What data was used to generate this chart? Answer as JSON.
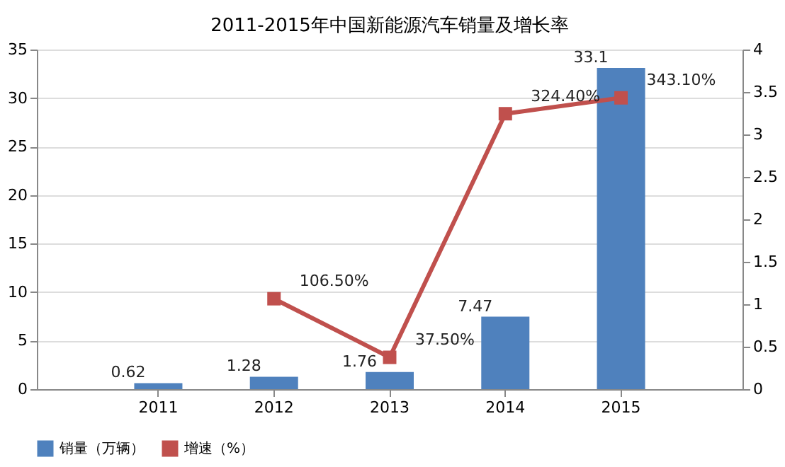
{
  "chart_data": {
    "type": "bar",
    "title": "2011-2015年中国新能源汽车销量及增长率",
    "categories": [
      "2011",
      "2012",
      "2013",
      "2014",
      "2015"
    ],
    "series": [
      {
        "name": "销量（万辆）",
        "color": "#4f81bd",
        "values": [
          0.62,
          1.28,
          1.76,
          7.47,
          33.1
        ],
        "data_labels": true
      },
      {
        "name": "增速（%）",
        "type": "line",
        "axis": "y2",
        "color": "#c0504d",
        "values": [
          null,
          1.065,
          0.375,
          3.244,
          3.431
        ],
        "value_labels": [
          null,
          "106.50%",
          "37.50%",
          "324.40%",
          "343.10%"
        ],
        "marker": "square"
      }
    ],
    "ylim": [
      0,
      35
    ],
    "yticks": [
      0,
      5,
      10,
      15,
      20,
      25,
      30,
      35
    ],
    "y2lim": [
      0,
      4
    ],
    "y2ticks": [
      0,
      0.5,
      1,
      1.5,
      2,
      2.5,
      3,
      3.5,
      4
    ],
    "grid": "y",
    "legend": "bottom"
  }
}
